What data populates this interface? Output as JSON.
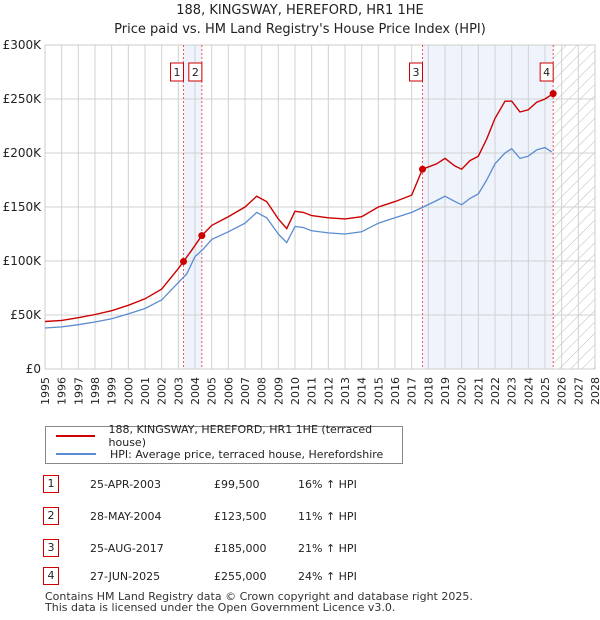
{
  "title": "188, KINGSWAY, HEREFORD, HR1 1HE",
  "subtitle": "Price paid vs. HM Land Registry's House Price Index (HPI)",
  "legend": {
    "property": "188, KINGSWAY, HEREFORD, HR1 1HE (terraced house)",
    "hpi": "HPI: Average price, terraced house, Herefordshire"
  },
  "colors": {
    "property": "#cc0000",
    "hpi": "#5b8bd0",
    "shade": "#eef3fc"
  },
  "sales": [
    {
      "n": "1",
      "date": "25-APR-2003",
      "price": "£99,500",
      "hpi": "16% ↑ HPI",
      "year": 2003.31,
      "value": 99500
    },
    {
      "n": "2",
      "date": "28-MAY-2004",
      "price": "£123,500",
      "hpi": "11% ↑ HPI",
      "year": 2004.41,
      "value": 123500
    },
    {
      "n": "3",
      "date": "25-AUG-2017",
      "price": "£185,000",
      "hpi": "21% ↑ HPI",
      "year": 2017.65,
      "value": 185000
    },
    {
      "n": "4",
      "date": "27-JUN-2025",
      "price": "£255,000",
      "hpi": "24% ↑ HPI",
      "year": 2025.49,
      "value": 255000
    }
  ],
  "footer": [
    "Contains HM Land Registry data © Crown copyright and database right 2025.",
    "This data is licensed under the Open Government Licence v3.0."
  ],
  "chart_data": {
    "type": "line",
    "xlim": [
      1995,
      2028
    ],
    "ylim": [
      0,
      300000
    ],
    "yticks": [
      {
        "v": 0,
        "l": "£0"
      },
      {
        "v": 50000,
        "l": "£50K"
      },
      {
        "v": 100000,
        "l": "£100K"
      },
      {
        "v": 150000,
        "l": "£150K"
      },
      {
        "v": 200000,
        "l": "£200K"
      },
      {
        "v": 250000,
        "l": "£250K"
      },
      {
        "v": 300000,
        "l": "£300K"
      }
    ],
    "xticks": [
      "1995",
      "1996",
      "1997",
      "1998",
      "1999",
      "2000",
      "2001",
      "2002",
      "2003",
      "2004",
      "2005",
      "2006",
      "2007",
      "2008",
      "2009",
      "2010",
      "2011",
      "2012",
      "2013",
      "2014",
      "2015",
      "2016",
      "2017",
      "2018",
      "2019",
      "2020",
      "2021",
      "2022",
      "2023",
      "2024",
      "2025",
      "2026",
      "2027",
      "2028"
    ],
    "forecast_from": 2025.5,
    "series": [
      {
        "name": "hpi",
        "x": [
          1995,
          1996,
          1997,
          1998,
          1999,
          2000,
          2001,
          2002,
          2003,
          2003.5,
          2004,
          2004.5,
          2005,
          2006,
          2007,
          2007.7,
          2008.3,
          2009,
          2009.5,
          2010,
          2010.5,
          2011,
          2012,
          2013,
          2014,
          2015,
          2016,
          2017,
          2017.7,
          2018.5,
          2019,
          2019.6,
          2020,
          2020.5,
          2021,
          2021.5,
          2022,
          2022.6,
          2023,
          2023.5,
          2024,
          2024.5,
          2025,
          2025.4
        ],
        "values": [
          38000,
          39000,
          41000,
          43500,
          46500,
          51000,
          56000,
          64000,
          80000,
          88000,
          104000,
          111000,
          120000,
          127000,
          135000,
          145000,
          140000,
          125000,
          117000,
          132000,
          131000,
          128000,
          126000,
          125000,
          127000,
          135000,
          140000,
          145000,
          150000,
          156000,
          160000,
          155000,
          152000,
          158000,
          162000,
          175000,
          190000,
          200000,
          204000,
          195000,
          197000,
          203000,
          205000,
          201000
        ]
      },
      {
        "name": "property",
        "x": [
          1995,
          1996,
          1997,
          1998,
          1999,
          2000,
          2001,
          2002,
          2003,
          2003.31,
          2003.8,
          2004.41,
          2005,
          2006,
          2007,
          2007.7,
          2008.3,
          2009,
          2009.5,
          2010,
          2010.5,
          2011,
          2012,
          2013,
          2014,
          2015,
          2016,
          2017,
          2017.65,
          2018.5,
          2019,
          2019.6,
          2020,
          2020.5,
          2021,
          2021.5,
          2022,
          2022.6,
          2023,
          2023.5,
          2024,
          2024.5,
          2025,
          2025.49
        ],
        "values": [
          44000,
          45000,
          47500,
          50500,
          54000,
          59000,
          65000,
          74000,
          93000,
          99500,
          110000,
          123500,
          133000,
          141000,
          150000,
          160000,
          155000,
          139000,
          130000,
          146000,
          145000,
          142000,
          140000,
          139000,
          141000,
          150000,
          155000,
          161000,
          185000,
          190000,
          195000,
          188000,
          185000,
          193000,
          197000,
          213000,
          232000,
          248000,
          248000,
          238000,
          240000,
          247000,
          250000,
          255000
        ]
      }
    ]
  }
}
